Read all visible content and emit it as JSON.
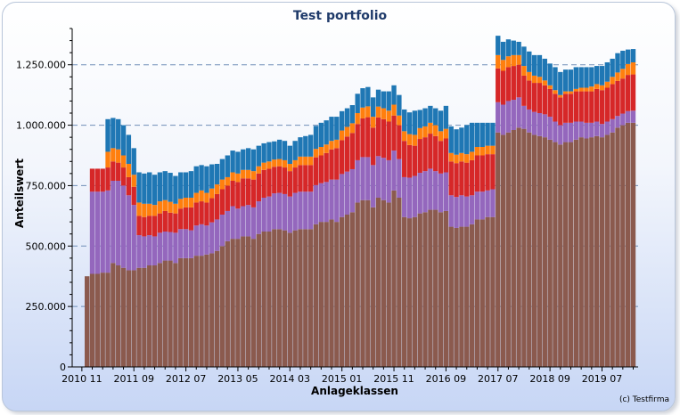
{
  "chart_data": {
    "type": "bar",
    "stacked": true,
    "title": "Test portfolio",
    "ylabel": "Anteilswert",
    "xlabel": "Anlageklassen",
    "copyright": "(c) Testfirma",
    "ylim": [
      0,
      1400000
    ],
    "yticks": [
      0,
      250000,
      500000,
      750000,
      1000000,
      1250000
    ],
    "ytick_labels": [
      "0",
      "250.000",
      "500.000",
      "750.000",
      "1.000.000",
      "1.250.000"
    ],
    "xtick_labels": [
      "2010 11",
      "2011 09",
      "2012 07",
      "2013 05",
      "2014 03",
      "2015 01",
      "2015 11",
      "2016 09",
      "2017 07",
      "2018 09",
      "2019 07"
    ],
    "xtick_positions": [
      0,
      10,
      20,
      30,
      40,
      50,
      60,
      70,
      80,
      90,
      100
    ],
    "grid": "horizontal-dashed",
    "legend": "none",
    "colors": [
      "#8b5a4e",
      "#9467bd",
      "#d62728",
      "#ff7f0e",
      "#1f77b4"
    ],
    "series": [
      {
        "values": [
          0,
          375000,
          385000,
          385000,
          390000,
          390000,
          430000,
          420000,
          410000,
          400000,
          400000,
          410000,
          410000,
          420000,
          420000,
          430000,
          440000,
          440000,
          430000,
          450000,
          450000,
          450000,
          460000,
          460000,
          465000,
          470000,
          480000,
          500000,
          520000,
          530000,
          530000,
          540000,
          540000,
          530000,
          550000,
          560000,
          560000,
          570000,
          570000,
          565000,
          555000,
          565000,
          570000,
          570000,
          570000,
          590000,
          600000,
          600000,
          610000,
          600000,
          620000,
          630000,
          640000,
          680000,
          690000,
          690000,
          660000,
          700000,
          690000,
          680000,
          730000,
          700000,
          620000,
          615000,
          620000,
          635000,
          640000,
          650000,
          650000,
          640000,
          645000,
          580000,
          575000,
          580000,
          580000,
          590000,
          610000,
          610000,
          620000,
          620000,
          970000,
          960000,
          970000,
          980000,
          990000,
          985000,
          970000,
          960000,
          955000,
          950000,
          940000,
          930000,
          920000,
          930000,
          930000,
          940000,
          950000,
          945000,
          950000,
          955000,
          950000,
          960000,
          970000,
          990000,
          1000000,
          1010000,
          1010000
        ]
      },
      {
        "values": [
          0,
          0,
          340000,
          340000,
          335000,
          340000,
          340000,
          350000,
          340000,
          310000,
          270000,
          135000,
          130000,
          125000,
          120000,
          125000,
          120000,
          118000,
          125000,
          120000,
          120000,
          115000,
          125000,
          130000,
          120000,
          128000,
          130000,
          130000,
          125000,
          135000,
          125000,
          125000,
          130000,
          130000,
          135000,
          140000,
          145000,
          148000,
          150000,
          150000,
          150000,
          155000,
          155000,
          155000,
          155000,
          162000,
          160000,
          165000,
          165000,
          175000,
          178000,
          178000,
          178000,
          175000,
          178000,
          178000,
          175000,
          172000,
          175000,
          175000,
          165000,
          160000,
          165000,
          168000,
          170000,
          168000,
          170000,
          170000,
          160000,
          160000,
          160000,
          130000,
          128000,
          130000,
          125000,
          120000,
          115000,
          115000,
          110000,
          115000,
          125000,
          125000,
          130000,
          125000,
          125000,
          95000,
          95000,
          95000,
          95000,
          95000,
          95000,
          85000,
          80000,
          80000,
          80000,
          75000,
          65000,
          65000,
          60000,
          60000,
          55000,
          55000,
          55000,
          48000,
          48000,
          48000,
          50000
        ]
      },
      {
        "values": [
          0,
          0,
          95000,
          95000,
          95000,
          95000,
          80000,
          75000,
          75000,
          75000,
          75000,
          80000,
          80000,
          80000,
          85000,
          80000,
          85000,
          80000,
          80000,
          85000,
          90000,
          95000,
          95000,
          95000,
          95000,
          100000,
          105000,
          105000,
          105000,
          105000,
          110000,
          115000,
          110000,
          115000,
          115000,
          115000,
          115000,
          110000,
          110000,
          110000,
          105000,
          105000,
          110000,
          110000,
          110000,
          115000,
          115000,
          120000,
          125000,
          130000,
          140000,
          145000,
          150000,
          150000,
          160000,
          165000,
          155000,
          160000,
          160000,
          160000,
          145000,
          140000,
          150000,
          135000,
          125000,
          140000,
          140000,
          145000,
          145000,
          135000,
          140000,
          140000,
          140000,
          140000,
          140000,
          145000,
          150000,
          150000,
          150000,
          145000,
          140000,
          140000,
          140000,
          140000,
          135000,
          125000,
          120000,
          120000,
          125000,
          120000,
          115000,
          115000,
          115000,
          120000,
          120000,
          125000,
          125000,
          130000,
          130000,
          135000,
          140000,
          140000,
          145000,
          145000,
          145000,
          150000,
          150000
        ]
      },
      {
        "values": [
          0,
          0,
          0,
          0,
          0,
          65000,
          55000,
          55000,
          50000,
          55000,
          50000,
          55000,
          55000,
          50000,
          45000,
          50000,
          45000,
          45000,
          40000,
          40000,
          40000,
          40000,
          40000,
          45000,
          40000,
          40000,
          40000,
          40000,
          35000,
          35000,
          35000,
          35000,
          35000,
          35000,
          30000,
          30000,
          30000,
          30000,
          30000,
          30000,
          30000,
          30000,
          35000,
          35000,
          35000,
          35000,
          35000,
          35000,
          35000,
          35000,
          40000,
          40000,
          40000,
          45000,
          45000,
          45000,
          45000,
          45000,
          45000,
          45000,
          45000,
          40000,
          40000,
          45000,
          45000,
          45000,
          45000,
          45000,
          45000,
          40000,
          40000,
          35000,
          35000,
          35000,
          35000,
          35000,
          35000,
          35000,
          35000,
          35000,
          55000,
          45000,
          45000,
          45000,
          40000,
          40000,
          35000,
          30000,
          25000,
          20000,
          15000,
          15000,
          10000,
          10000,
          10000,
          10000,
          15000,
          15000,
          20000,
          20000,
          20000,
          25000,
          30000,
          35000,
          40000,
          45000,
          50000
        ]
      },
      {
        "values": [
          0,
          0,
          0,
          0,
          0,
          135000,
          125000,
          125000,
          125000,
          120000,
          110000,
          125000,
          125000,
          130000,
          125000,
          120000,
          120000,
          120000,
          115000,
          110000,
          105000,
          110000,
          110000,
          105000,
          110000,
          100000,
          85000,
          85000,
          90000,
          90000,
          90000,
          85000,
          90000,
          90000,
          85000,
          80000,
          80000,
          75000,
          80000,
          80000,
          75000,
          80000,
          80000,
          85000,
          90000,
          95000,
          100000,
          100000,
          100000,
          95000,
          80000,
          77000,
          75000,
          80000,
          80000,
          80000,
          80000,
          70000,
          70000,
          80000,
          80000,
          85000,
          90000,
          90000,
          100000,
          75000,
          75000,
          70000,
          70000,
          85000,
          95000,
          110000,
          105000,
          105000,
          120000,
          120000,
          100000,
          100000,
          95000,
          95000,
          80000,
          75000,
          70000,
          60000,
          55000,
          80000,
          85000,
          85000,
          90000,
          90000,
          90000,
          95000,
          95000,
          90000,
          90000,
          90000,
          85000,
          85000,
          80000,
          75000,
          80000,
          80000,
          75000,
          80000,
          75000,
          60000,
          55000
        ]
      }
    ]
  }
}
